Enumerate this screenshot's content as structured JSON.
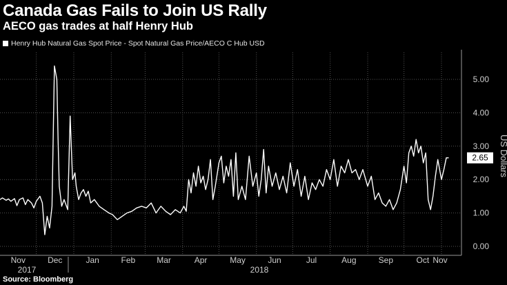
{
  "title": "Canada Gas Fails to Join US Rally",
  "subtitle": "AECO gas trades at half Henry Hub",
  "source": "Source: Bloomberg",
  "colors": {
    "background": "#000000",
    "line": "#ffffff",
    "grid": "#555555",
    "text": "#cfcfcf"
  },
  "chart_data": {
    "type": "line",
    "title": "Canada Gas Fails to Join US Rally",
    "subtitle": "AECO gas trades at half Henry Hub",
    "ylabel": "US Dollars",
    "xlabel": "",
    "ylim": [
      0,
      5.6
    ],
    "yticks": [
      "0.00",
      "1.00",
      "2.00",
      "3.00",
      "4.00",
      "5.00"
    ],
    "y_axis_side": "right",
    "grid": true,
    "legend_position": "top-left",
    "last_value_label": "2.65",
    "x_tick_labels": [
      "Nov",
      "Dec",
      "Jan",
      "Feb",
      "Mar",
      "Apr",
      "May",
      "Jun",
      "Jul",
      "Aug",
      "Sep",
      "Oct",
      "Nov"
    ],
    "x_year_labels": [
      "2017",
      "2018"
    ],
    "series": [
      {
        "name": "Henry Hub Natural Gas Spot Price - Spot Natural Gas Price/AECO C Hub USD",
        "x": [
          "2017-11-01",
          "2017-11-03",
          "2017-11-06",
          "2017-11-08",
          "2017-11-10",
          "2017-11-13",
          "2017-11-15",
          "2017-11-17",
          "2017-11-20",
          "2017-11-22",
          "2017-11-24",
          "2017-11-27",
          "2017-11-29",
          "2017-12-01",
          "2017-12-04",
          "2017-12-06",
          "2017-12-08",
          "2017-12-10",
          "2017-12-12",
          "2017-12-14",
          "2017-12-16",
          "2017-12-18",
          "2017-12-19",
          "2017-12-20",
          "2017-12-21",
          "2017-12-22",
          "2017-12-24",
          "2017-12-27",
          "2017-12-29",
          "2017-12-31",
          "2018-01-02",
          "2018-01-03",
          "2018-01-05",
          "2018-01-07",
          "2018-01-09",
          "2018-01-11",
          "2018-01-13",
          "2018-01-15",
          "2018-01-18",
          "2018-01-22",
          "2018-01-26",
          "2018-01-30",
          "2018-02-02",
          "2018-02-06",
          "2018-02-10",
          "2018-02-14",
          "2018-02-18",
          "2018-02-22",
          "2018-02-26",
          "2018-03-02",
          "2018-03-06",
          "2018-03-10",
          "2018-03-14",
          "2018-03-18",
          "2018-03-22",
          "2018-03-26",
          "2018-03-30",
          "2018-04-02",
          "2018-04-04",
          "2018-04-06",
          "2018-04-08",
          "2018-04-10",
          "2018-04-12",
          "2018-04-14",
          "2018-04-16",
          "2018-04-18",
          "2018-04-20",
          "2018-04-22",
          "2018-04-24",
          "2018-04-26",
          "2018-04-28",
          "2018-05-01",
          "2018-05-03",
          "2018-05-05",
          "2018-05-07",
          "2018-05-09",
          "2018-05-11",
          "2018-05-13",
          "2018-05-15",
          "2018-05-17",
          "2018-05-20",
          "2018-05-23",
          "2018-05-26",
          "2018-05-29",
          "2018-06-01",
          "2018-06-03",
          "2018-06-05",
          "2018-06-07",
          "2018-06-09",
          "2018-06-11",
          "2018-06-14",
          "2018-06-17",
          "2018-06-20",
          "2018-06-23",
          "2018-06-26",
          "2018-06-29",
          "2018-07-02",
          "2018-07-05",
          "2018-07-08",
          "2018-07-11",
          "2018-07-14",
          "2018-07-17",
          "2018-07-20",
          "2018-07-23",
          "2018-07-26",
          "2018-07-29",
          "2018-08-01",
          "2018-08-04",
          "2018-08-07",
          "2018-08-10",
          "2018-08-13",
          "2018-08-16",
          "2018-08-19",
          "2018-08-22",
          "2018-08-25",
          "2018-08-28",
          "2018-09-01",
          "2018-09-04",
          "2018-09-07",
          "2018-09-10",
          "2018-09-13",
          "2018-09-16",
          "2018-09-19",
          "2018-09-22",
          "2018-09-25",
          "2018-09-28",
          "2018-10-01",
          "2018-10-03",
          "2018-10-05",
          "2018-10-07",
          "2018-10-09",
          "2018-10-11",
          "2018-10-13",
          "2018-10-15",
          "2018-10-17",
          "2018-10-19",
          "2018-10-21",
          "2018-10-23",
          "2018-10-25",
          "2018-10-27",
          "2018-10-29",
          "2018-11-01",
          "2018-11-03",
          "2018-11-05",
          "2018-11-07"
        ],
        "values": [
          1.4,
          1.45,
          1.38,
          1.42,
          1.35,
          1.43,
          1.22,
          1.4,
          1.45,
          1.25,
          1.4,
          1.3,
          1.15,
          1.35,
          1.5,
          1.3,
          0.35,
          0.9,
          0.55,
          1.2,
          5.4,
          5.0,
          3.2,
          1.8,
          1.5,
          1.2,
          1.4,
          1.1,
          3.9,
          2.0,
          2.2,
          1.8,
          1.4,
          1.6,
          1.7,
          1.5,
          1.65,
          1.3,
          1.4,
          1.2,
          1.1,
          1.0,
          0.95,
          0.8,
          0.9,
          1.0,
          1.05,
          1.15,
          1.2,
          1.15,
          1.3,
          1.0,
          1.2,
          1.05,
          0.95,
          1.1,
          1.0,
          1.2,
          1.05,
          2.0,
          1.6,
          2.2,
          1.8,
          2.4,
          1.9,
          2.1,
          1.7,
          2.0,
          2.6,
          1.4,
          1.8,
          2.5,
          2.7,
          1.9,
          2.4,
          2.1,
          2.6,
          1.5,
          2.8,
          1.4,
          1.8,
          1.4,
          2.7,
          1.8,
          2.2,
          1.5,
          2.0,
          2.9,
          1.6,
          2.4,
          1.8,
          2.2,
          1.7,
          2.1,
          1.6,
          2.5,
          1.8,
          2.3,
          1.5,
          2.1,
          1.4,
          1.9,
          1.7,
          2.0,
          1.8,
          2.3,
          2.0,
          2.6,
          1.8,
          2.4,
          2.2,
          2.6,
          2.2,
          2.3,
          2.0,
          2.3,
          1.8,
          2.1,
          1.4,
          1.6,
          1.3,
          1.2,
          1.4,
          1.1,
          1.3,
          1.7,
          2.4,
          1.9,
          2.8,
          3.0,
          2.7,
          3.2,
          2.8,
          3.0,
          2.5,
          2.8,
          1.4,
          1.1,
          1.5,
          2.1,
          2.6,
          2.0,
          2.3,
          2.65,
          2.65
        ]
      }
    ]
  }
}
